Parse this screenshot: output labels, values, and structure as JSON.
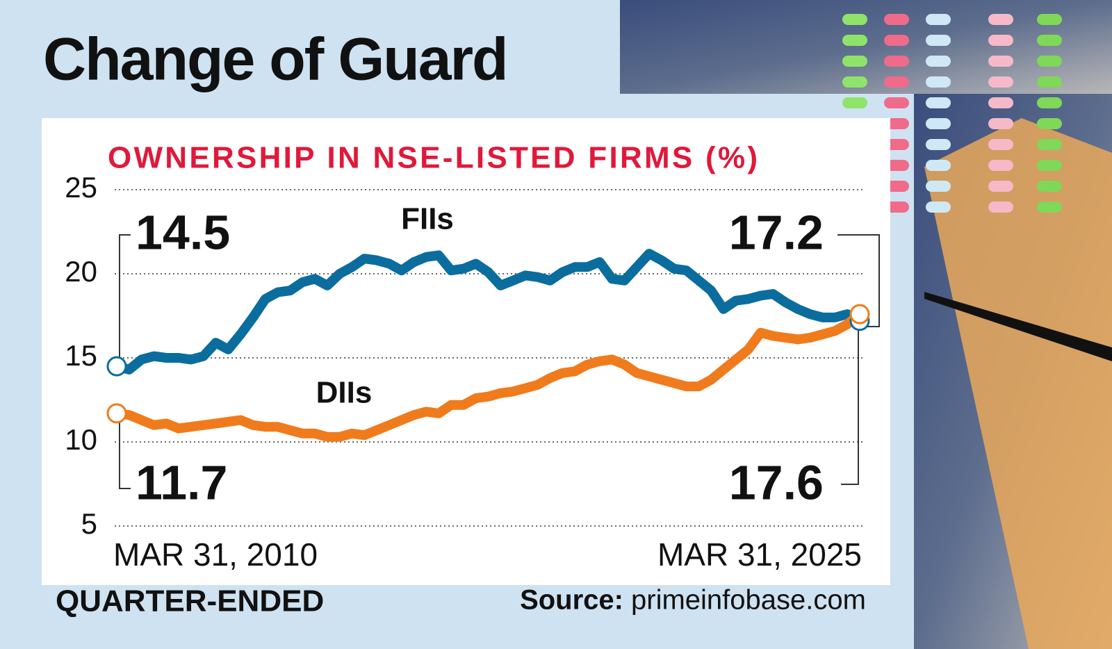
{
  "chart_data": {
    "type": "line",
    "title": "Change of Guard",
    "subtitle": "OWNERSHIP IN NSE-LISTED FIRMS (%)",
    "x_label": "QUARTER-ENDED",
    "source_label": "Source:",
    "source": "primeinfobase.com",
    "categories": [
      "MAR 31, 2010",
      null,
      null,
      null,
      null,
      null,
      null,
      null,
      null,
      null,
      null,
      null,
      null,
      null,
      null,
      null,
      null,
      null,
      null,
      null,
      null,
      null,
      null,
      null,
      null,
      null,
      null,
      null,
      null,
      null,
      null,
      null,
      null,
      null,
      null,
      null,
      null,
      null,
      null,
      null,
      null,
      null,
      null,
      null,
      null,
      null,
      null,
      null,
      null,
      null,
      null,
      null,
      null,
      null,
      null,
      null,
      null,
      null,
      null,
      null,
      "MAR 31, 2025"
    ],
    "series": [
      {
        "name": "FIIs",
        "color": "#0b6d9e",
        "values": [
          14.5,
          14.3,
          14.9,
          15.1,
          15.0,
          15.0,
          14.9,
          15.1,
          15.9,
          15.5,
          16.4,
          17.4,
          18.5,
          18.9,
          19.0,
          19.5,
          19.7,
          19.3,
          20.0,
          20.4,
          20.9,
          20.8,
          20.6,
          20.2,
          20.7,
          21.0,
          21.1,
          20.2,
          20.3,
          20.6,
          20.1,
          19.3,
          19.6,
          19.9,
          19.8,
          19.6,
          20.1,
          20.4,
          20.4,
          20.7,
          19.7,
          19.6,
          20.4,
          21.2,
          20.8,
          20.3,
          20.2,
          19.6,
          19.0,
          17.9,
          18.4,
          18.5,
          18.7,
          18.8,
          18.3,
          17.9,
          17.6,
          17.4,
          17.4,
          17.6,
          17.2
        ]
      },
      {
        "name": "DIIs",
        "color": "#f07b1c",
        "values": [
          11.7,
          11.6,
          11.3,
          11.0,
          11.1,
          10.8,
          10.9,
          11.0,
          11.1,
          11.2,
          11.3,
          11.0,
          10.9,
          10.9,
          10.7,
          10.5,
          10.5,
          10.3,
          10.3,
          10.5,
          10.4,
          10.7,
          11.0,
          11.3,
          11.6,
          11.8,
          11.7,
          12.2,
          12.2,
          12.6,
          12.7,
          12.9,
          13.0,
          13.2,
          13.4,
          13.8,
          14.1,
          14.2,
          14.6,
          14.8,
          14.9,
          14.6,
          14.1,
          13.9,
          13.7,
          13.5,
          13.3,
          13.3,
          13.7,
          14.3,
          14.9,
          15.5,
          16.5,
          16.3,
          16.2,
          16.1,
          16.2,
          16.4,
          16.6,
          17.0,
          17.6
        ]
      }
    ],
    "ylim": [
      5,
      25
    ],
    "yticks": [
      5,
      10,
      15,
      20,
      25
    ],
    "grid": true
  }
}
